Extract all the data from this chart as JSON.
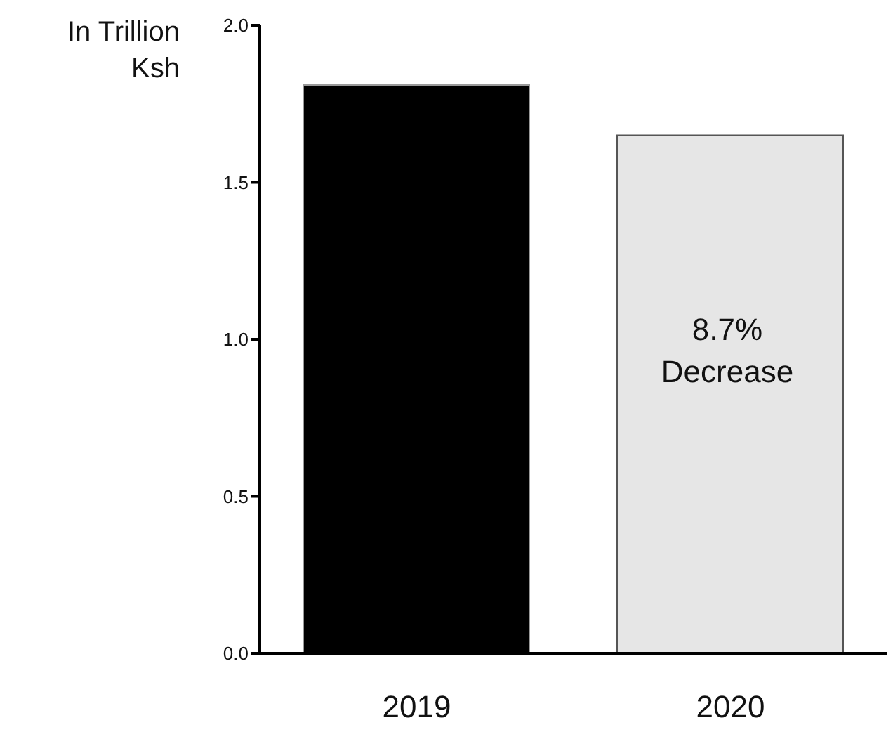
{
  "chart_data": {
    "type": "bar",
    "ylabel": "In Trillion Ksh",
    "categories": [
      "2019",
      "2020"
    ],
    "values": [
      1.81,
      1.65
    ],
    "colors": [
      "#000000",
      "#e6e6e6"
    ],
    "ylim": [
      0,
      2
    ],
    "yticks": [
      {
        "value": 0,
        "label": "0.0"
      },
      {
        "value": 0.5,
        "label": "0.5"
      },
      {
        "value": 1,
        "label": "1.0"
      },
      {
        "value": 1.5,
        "label": "1.5"
      },
      {
        "value": 2,
        "label": "2.0"
      }
    ],
    "annotations": [
      "8.7% Decrease"
    ]
  }
}
